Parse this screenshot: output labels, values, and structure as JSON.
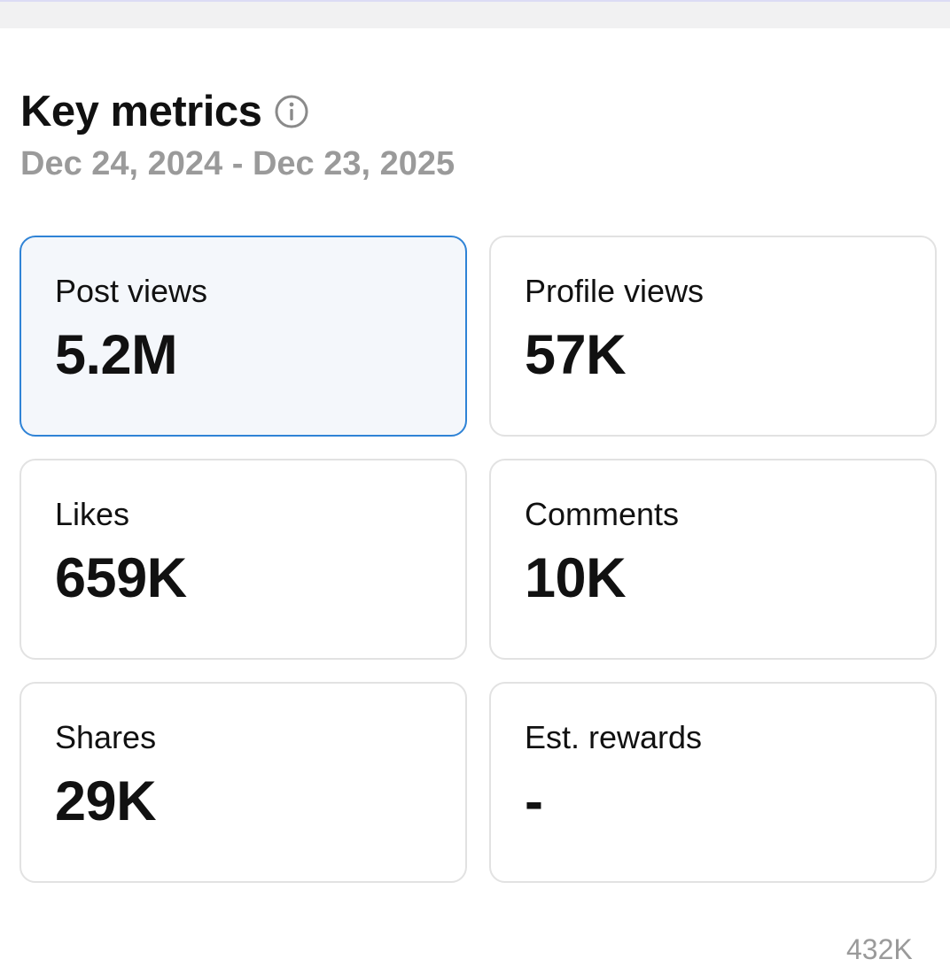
{
  "header": {
    "title": "Key metrics",
    "info_icon": "info-circle-icon",
    "date_range": "Dec 24, 2024 - Dec 23, 2025"
  },
  "metrics": [
    {
      "label": "Post views",
      "value": "5.2M",
      "selected": true
    },
    {
      "label": "Profile views",
      "value": "57K",
      "selected": false
    },
    {
      "label": "Likes",
      "value": "659K",
      "selected": false
    },
    {
      "label": "Comments",
      "value": "10K",
      "selected": false
    },
    {
      "label": "Shares",
      "value": "29K",
      "selected": false
    },
    {
      "label": "Est. rewards",
      "value": "-",
      "selected": false
    }
  ],
  "footer": {
    "cut_off_value": "432K"
  },
  "colors": {
    "selected_border": "#2f83d6",
    "selected_background": "#f4f7fb",
    "card_border": "#e2e2e2",
    "muted_text": "#9a9a9a"
  }
}
